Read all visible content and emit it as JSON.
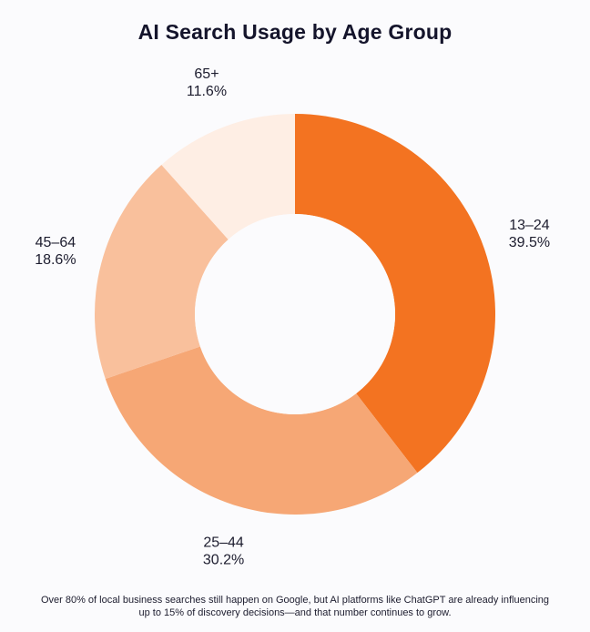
{
  "chart_data": {
    "type": "pie",
    "title": "AI Search Usage by Age Group",
    "donut": true,
    "slices": [
      {
        "label": "13–24",
        "value": 39.5,
        "display": "39.5%",
        "color": "#f37321"
      },
      {
        "label": "25–44",
        "value": 30.2,
        "display": "30.2%",
        "color": "#f6a775"
      },
      {
        "label": "45–64",
        "value": 18.6,
        "display": "18.6%",
        "color": "#f9c09c"
      },
      {
        "label": "65+",
        "value": 11.6,
        "display": "11.6%",
        "color": "#feeee4"
      }
    ],
    "start_angle": "12 o'clock",
    "direction": "clockwise"
  },
  "footnote": "Over 80% of local business searches still happen on Google, but AI platforms like ChatGPT are already influencing up to 15% of discovery decisions—and that number continues to grow."
}
